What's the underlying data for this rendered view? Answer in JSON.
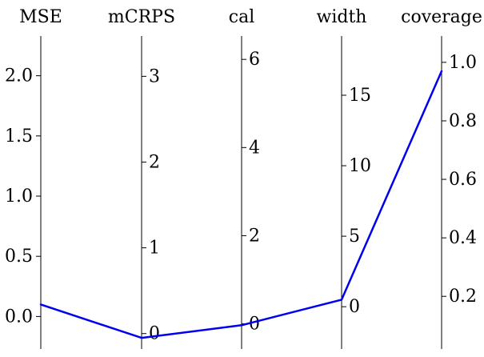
{
  "chart_data": {
    "type": "line",
    "plot_kind": "parallel-coordinates",
    "grid": false,
    "axes": [
      {
        "id": "mse",
        "title": "MSE",
        "range": [
          -0.27,
          2.33
        ],
        "ticks": [
          0.0,
          0.5,
          1.0,
          1.5,
          2.0
        ],
        "tick_labels": [
          "0.0",
          "0.5",
          "1.0",
          "1.5",
          "2.0"
        ],
        "tick_side": "left"
      },
      {
        "id": "mcrps",
        "title": "mCRPS",
        "range": [
          -0.18,
          3.47
        ],
        "ticks": [
          0,
          1,
          2,
          3
        ],
        "tick_labels": [
          "0",
          "1",
          "2",
          "3"
        ],
        "tick_side": "right"
      },
      {
        "id": "cal",
        "title": "cal",
        "range": [
          -0.57,
          6.53
        ],
        "ticks": [
          0,
          2,
          4,
          6
        ],
        "tick_labels": [
          "0",
          "2",
          "4",
          "6"
        ],
        "tick_side": "right"
      },
      {
        "id": "width",
        "title": "width",
        "range": [
          -3.0,
          19.2
        ],
        "ticks": [
          0,
          5,
          10,
          15
        ],
        "tick_labels": [
          "0",
          "5",
          "10",
          "15"
        ],
        "tick_side": "right"
      },
      {
        "id": "coverage",
        "title": "coverage",
        "range": [
          0.02,
          1.09
        ],
        "ticks": [
          0.2,
          0.4,
          0.6,
          0.8,
          1.0
        ],
        "tick_labels": [
          "0.2",
          "0.4",
          "0.6",
          "0.8",
          "1.0"
        ],
        "tick_side": "right"
      }
    ],
    "series": [
      {
        "color": "#0000ee",
        "values": [
          0.1,
          -0.05,
          -0.03,
          0.5,
          0.97
        ]
      }
    ]
  }
}
